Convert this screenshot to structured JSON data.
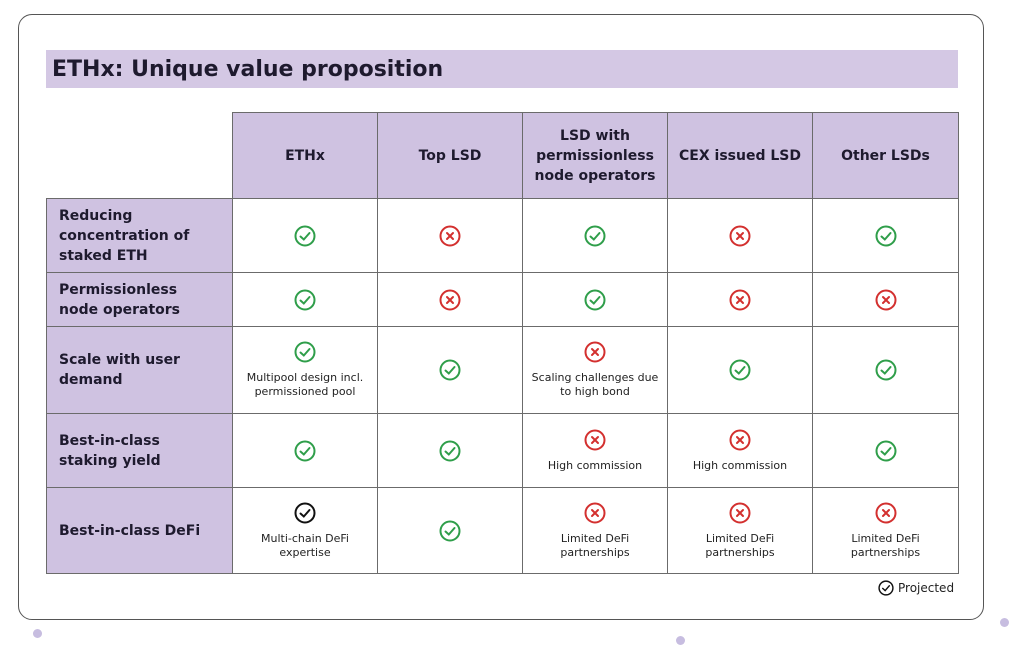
{
  "title": "ETHx: Unique value proposition",
  "table": {
    "columns": [
      "ETHx",
      "Top LSD",
      "LSD with permissionless node operators",
      "CEX issued LSD",
      "Other LSDs"
    ],
    "rows": [
      {
        "label": "Reducing concentration of staked ETH",
        "cells": [
          {
            "status": "check"
          },
          {
            "status": "cross"
          },
          {
            "status": "check"
          },
          {
            "status": "cross"
          },
          {
            "status": "check"
          }
        ]
      },
      {
        "label": "Permissionless node operators",
        "cells": [
          {
            "status": "check"
          },
          {
            "status": "cross"
          },
          {
            "status": "check"
          },
          {
            "status": "cross"
          },
          {
            "status": "cross"
          }
        ]
      },
      {
        "label": "Scale with user demand",
        "cells": [
          {
            "status": "check",
            "note": "Multipool design incl. permissioned pool"
          },
          {
            "status": "check"
          },
          {
            "status": "cross",
            "note": "Scaling challenges due to high bond"
          },
          {
            "status": "check"
          },
          {
            "status": "check"
          }
        ]
      },
      {
        "label": "Best-in-class staking yield",
        "cells": [
          {
            "status": "check"
          },
          {
            "status": "check"
          },
          {
            "status": "cross",
            "note": "High commission"
          },
          {
            "status": "cross",
            "note": "High commission"
          },
          {
            "status": "check"
          }
        ]
      },
      {
        "label": "Best-in-class DeFi",
        "cells": [
          {
            "status": "projected",
            "note": "Multi-chain DeFi expertise"
          },
          {
            "status": "check"
          },
          {
            "status": "cross",
            "note": "Limited DeFi partnerships"
          },
          {
            "status": "cross",
            "note": "Limited DeFi partnerships"
          },
          {
            "status": "cross",
            "note": "Limited DeFi partnerships"
          }
        ]
      }
    ]
  },
  "legend": {
    "status": "projected",
    "label": "Projected"
  }
}
